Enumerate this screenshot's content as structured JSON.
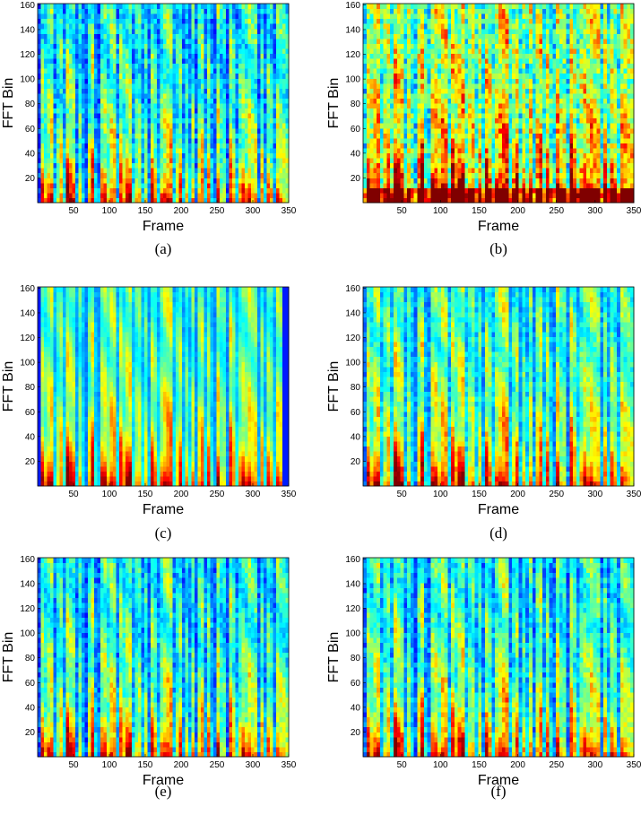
{
  "chart_data": [
    {
      "type": "heatmap",
      "colormap": "jet",
      "xlabel": "Frame",
      "ylabel": "FFT Bin",
      "caption": "(a)",
      "xlim": [
        0,
        350
      ],
      "ylim": [
        0,
        161
      ],
      "xticks": [
        50,
        100,
        150,
        200,
        250,
        300,
        350
      ],
      "yticks": [
        20,
        40,
        60,
        80,
        100,
        120,
        140,
        160
      ]
    },
    {
      "type": "heatmap",
      "colormap": "jet",
      "xlabel": "Frame",
      "ylabel": "FFT Bin",
      "caption": "(b)",
      "xlim": [
        0,
        350
      ],
      "ylim": [
        0,
        161
      ],
      "xticks": [
        50,
        100,
        150,
        200,
        250,
        300,
        350
      ],
      "yticks": [
        20,
        40,
        60,
        80,
        100,
        120,
        140,
        160
      ]
    },
    {
      "type": "heatmap",
      "colormap": "jet",
      "xlabel": "Frame",
      "ylabel": "FFT Bin",
      "caption": "(c)",
      "xlim": [
        0,
        350
      ],
      "ylim": [
        0,
        161
      ],
      "xticks": [
        50,
        100,
        150,
        200,
        250,
        300,
        350
      ],
      "yticks": [
        20,
        40,
        60,
        80,
        100,
        120,
        140,
        160
      ]
    },
    {
      "type": "heatmap",
      "colormap": "jet",
      "xlabel": "Frame",
      "ylabel": "FFT Bin",
      "caption": "(d)",
      "xlim": [
        0,
        350
      ],
      "ylim": [
        0,
        161
      ],
      "xticks": [
        50,
        100,
        150,
        200,
        250,
        300,
        350
      ],
      "yticks": [
        20,
        40,
        60,
        80,
        100,
        120,
        140,
        160
      ]
    },
    {
      "type": "heatmap",
      "colormap": "jet",
      "xlabel": "Frame",
      "ylabel": "FFT Bin",
      "caption": "(e)",
      "xlim": [
        0,
        350
      ],
      "ylim": [
        0,
        161
      ],
      "xticks": [
        50,
        100,
        150,
        200,
        250,
        300,
        350
      ],
      "yticks": [
        20,
        40,
        60,
        80,
        100,
        120,
        140,
        160
      ]
    },
    {
      "type": "heatmap",
      "colormap": "jet",
      "xlabel": "Frame",
      "ylabel": "FFT Bin",
      "caption": "(f)",
      "xlim": [
        0,
        350
      ],
      "ylim": [
        0,
        161
      ],
      "xticks": [
        50,
        100,
        150,
        200,
        250,
        300,
        350
      ],
      "yticks": [
        20,
        40,
        60,
        80,
        100,
        120,
        140,
        160
      ]
    }
  ]
}
